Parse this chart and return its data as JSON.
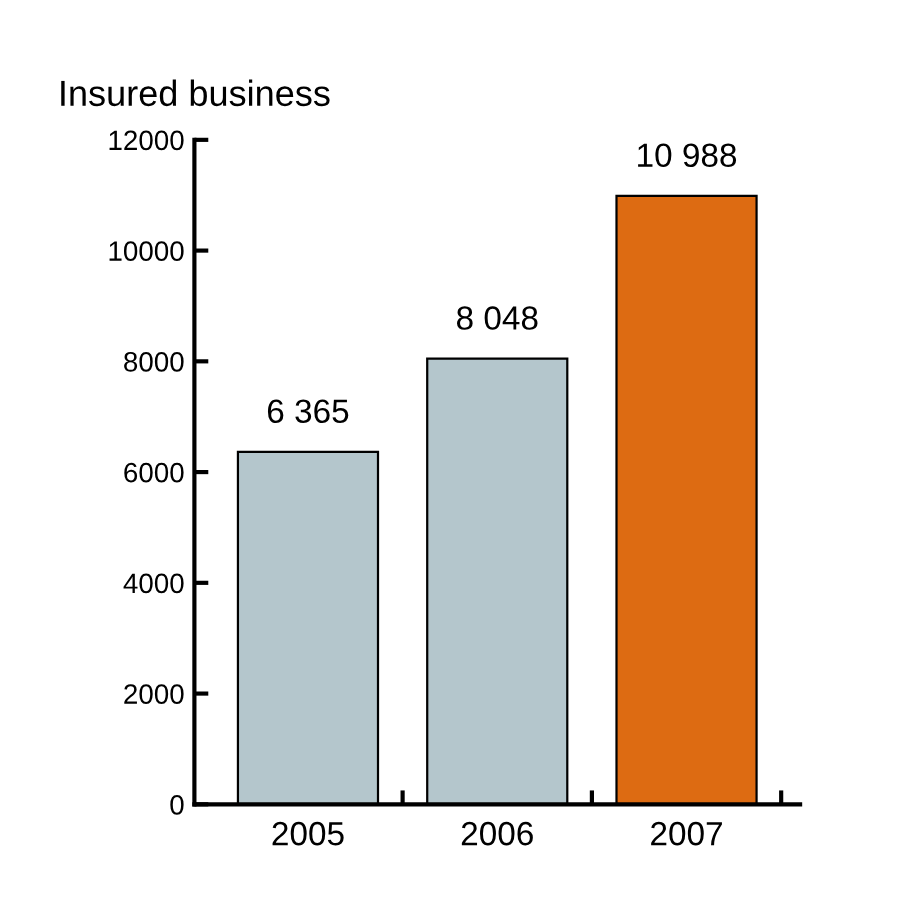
{
  "chart_data": {
    "type": "bar",
    "title": "Insured business",
    "categories": [
      "2005",
      "2006",
      "2007"
    ],
    "values": [
      6365,
      8048,
      10988
    ],
    "colors": [
      "#b4c6cc",
      "#b4c6cc",
      "#dd6b12"
    ],
    "value_labels": [
      "6 365",
      "8 048",
      "10 988"
    ],
    "ylim": [
      0,
      12000
    ],
    "yticks": [
      0,
      2000,
      4000,
      6000,
      8000,
      10000,
      12000
    ],
    "grid": false,
    "legend": false
  }
}
